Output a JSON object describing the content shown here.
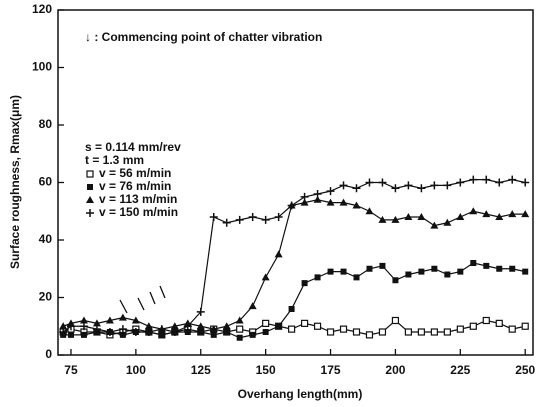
{
  "chart_data": {
    "type": "line",
    "xlabel": "Overhang length(mm)",
    "ylabel": "Surface roughness, Rmax(μm)",
    "annotations": [
      "↓ : Commencing point of chatter vibration",
      "s = 0.114 mm/rev",
      "t = 1.3 mm"
    ],
    "x": [
      72,
      75,
      80,
      85,
      90,
      95,
      100,
      105,
      110,
      115,
      120,
      125,
      130,
      135,
      140,
      145,
      150,
      155,
      160,
      165,
      170,
      175,
      180,
      185,
      190,
      195,
      200,
      205,
      210,
      215,
      220,
      225,
      230,
      235,
      240,
      245,
      250
    ],
    "series": [
      {
        "name": "v = 56 m/min",
        "color": "#111111",
        "marker": "open-square",
        "values": [
          8,
          9,
          8,
          8,
          7,
          8,
          9,
          8,
          7,
          8,
          9,
          8,
          9,
          8,
          9,
          8,
          11,
          10,
          9,
          11,
          10,
          8,
          9,
          8,
          7,
          8,
          12,
          8,
          8,
          8,
          8,
          9,
          10,
          12,
          11,
          9,
          10
        ]
      },
      {
        "name": "v = 76 m/min",
        "color": "#111111",
        "marker": "filled-square",
        "values": [
          7,
          7,
          7,
          8,
          8,
          7,
          8,
          8,
          7,
          8,
          8,
          8,
          7,
          8,
          6,
          7,
          8,
          10,
          16,
          25,
          27,
          29,
          29,
          27,
          30,
          31,
          26,
          28,
          29,
          30,
          28,
          29,
          32,
          31,
          30,
          30,
          29
        ]
      },
      {
        "name": "v = 113 m/min",
        "color": "#111111",
        "marker": "triangle",
        "values": [
          10,
          11,
          12,
          11,
          12,
          13,
          12,
          10,
          9,
          10,
          11,
          10,
          9,
          10,
          12,
          17,
          27,
          35,
          52,
          53,
          54,
          53,
          53,
          52,
          50,
          47,
          47,
          48,
          48,
          45,
          46,
          48,
          50,
          49,
          48,
          49,
          49
        ]
      },
      {
        "name": "v = 150 m/min",
        "color": "#111111",
        "marker": "plus",
        "values": [
          8,
          10,
          10,
          9,
          8,
          9,
          8,
          8,
          9,
          8,
          10,
          15,
          48,
          46,
          47,
          48,
          47,
          48,
          52,
          55,
          56,
          57,
          59,
          58,
          60,
          60,
          58,
          59,
          58,
          59,
          59,
          60,
          61,
          61,
          60,
          61,
          60
        ]
      }
    ],
    "xlim": [
      70,
      253
    ],
    "ylim": [
      0,
      120
    ],
    "xticks": [
      75,
      100,
      125,
      150,
      175,
      200,
      225,
      250
    ],
    "yticks": [
      0,
      20,
      40,
      60,
      80,
      100,
      120
    ]
  }
}
